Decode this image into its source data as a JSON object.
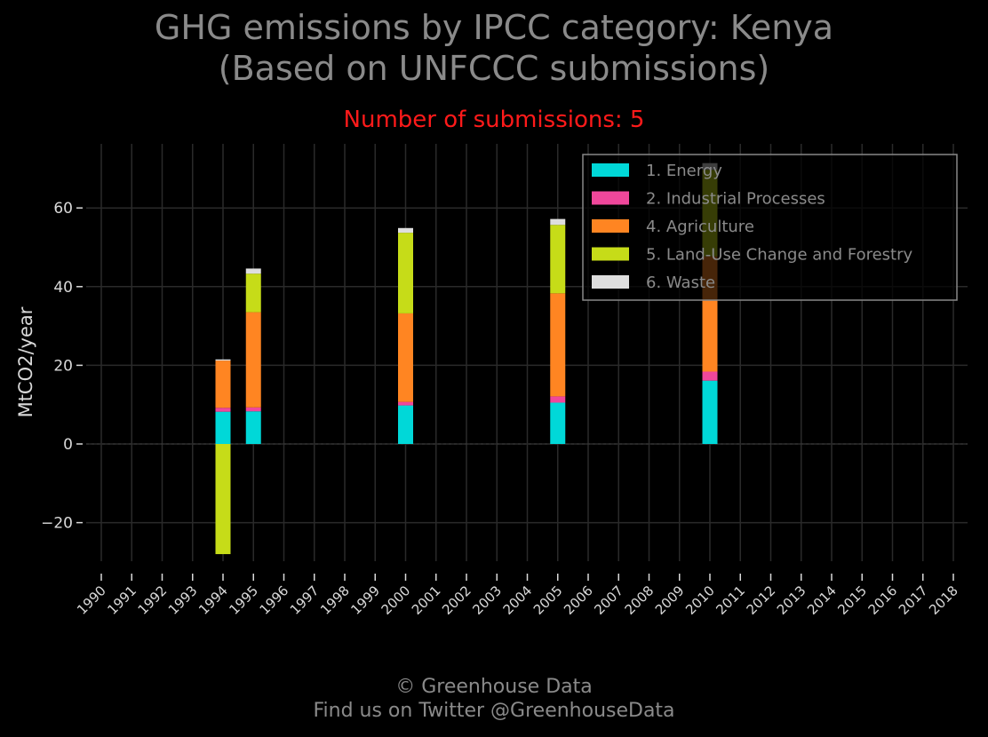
{
  "title_line1": "GHG emissions by IPCC category: Kenya",
  "title_line2": "(Based on UNFCCC submissions)",
  "subtitle": "Number of submissions: 5",
  "footer_line1": "© Greenhouse Data",
  "footer_line2": "Find us on Twitter @GreenhouseData",
  "chart_data": {
    "type": "bar",
    "stacked": true,
    "title": "GHG emissions by IPCC category: Kenya (Based on UNFCCC submissions)",
    "ylabel": "MtCO2/year",
    "xlabel": "",
    "ylim": [
      -33,
      76
    ],
    "yticks": [
      -20,
      0,
      20,
      40,
      60
    ],
    "ytick_labels": [
      "−20",
      "0",
      "20",
      "40",
      "60"
    ],
    "grid": true,
    "legend_position": "top-right",
    "categories": [
      "1990",
      "1991",
      "1992",
      "1993",
      "1994",
      "1995",
      "1996",
      "1997",
      "1998",
      "1999",
      "2000",
      "2001",
      "2002",
      "2003",
      "2004",
      "2005",
      "2006",
      "2007",
      "2008",
      "2009",
      "2010",
      "2011",
      "2012",
      "2013",
      "2014",
      "2015",
      "2016",
      "2017",
      "2018"
    ],
    "series": [
      {
        "name": "1. Energy",
        "color": "#00d8d8",
        "values": {
          "1994": 8.2,
          "1995": 8.3,
          "2000": 9.8,
          "2005": 10.5,
          "2010": 16.1
        }
      },
      {
        "name": "2. Industrial Processes",
        "color": "#f0479b",
        "values": {
          "1994": 1.0,
          "1995": 1.0,
          "2000": 0.9,
          "2005": 1.6,
          "2010": 2.3
        }
      },
      {
        "name": "4. Agriculture",
        "color": "#ff8522",
        "values": {
          "1994": 12.0,
          "1995": 24.2,
          "2000": 22.5,
          "2005": 26.2,
          "2010": 29.3
        }
      },
      {
        "name": "5. Land-Use Change and Forestry",
        "color": "#c6dc18",
        "values": {
          "1994": -28.0,
          "1995": 9.8,
          "2000": 20.5,
          "2005": 17.4,
          "2010": 22.0
        }
      },
      {
        "name": "6. Waste",
        "color": "#dedede",
        "values": {
          "1994": 0.3,
          "1995": 1.3,
          "2000": 1.2,
          "2005": 1.5,
          "2010": 1.7
        }
      }
    ]
  }
}
